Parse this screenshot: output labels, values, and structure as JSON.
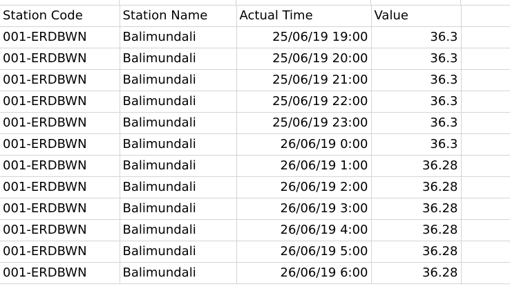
{
  "sheet": {
    "headers": [
      "Station Code",
      "Station Name",
      "Actual Time",
      "Value"
    ],
    "rows": [
      [
        "001-ERDBWN",
        "Balimundali",
        "25/06/19 19:00",
        "36.3"
      ],
      [
        "001-ERDBWN",
        "Balimundali",
        "25/06/19 20:00",
        "36.3"
      ],
      [
        "001-ERDBWN",
        "Balimundali",
        "25/06/19 21:00",
        "36.3"
      ],
      [
        "001-ERDBWN",
        "Balimundali",
        "25/06/19 22:00",
        "36.3"
      ],
      [
        "001-ERDBWN",
        "Balimundali",
        "25/06/19 23:00",
        "36.3"
      ],
      [
        "001-ERDBWN",
        "Balimundali",
        "26/06/19 0:00",
        "36.3"
      ],
      [
        "001-ERDBWN",
        "Balimundali",
        "26/06/19 1:00",
        "36.28"
      ],
      [
        "001-ERDBWN",
        "Balimundali",
        "26/06/19 2:00",
        "36.28"
      ],
      [
        "001-ERDBWN",
        "Balimundali",
        "26/06/19 3:00",
        "36.28"
      ],
      [
        "001-ERDBWN",
        "Balimundali",
        "26/06/19 4:00",
        "36.28"
      ],
      [
        "001-ERDBWN",
        "Balimundali",
        "26/06/19 5:00",
        "36.28"
      ],
      [
        "001-ERDBWN",
        "Balimundali",
        "26/06/19 6:00",
        "36.28"
      ]
    ]
  },
  "colors": {
    "gridline": "#d4d4d4",
    "text": "#000000",
    "background": "#ffffff"
  }
}
